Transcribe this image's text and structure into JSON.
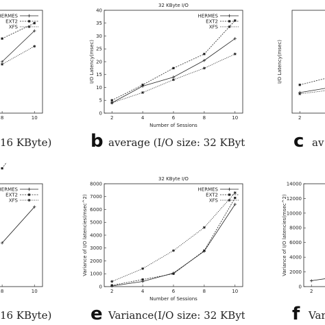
{
  "chart_data": [
    {
      "type": "line",
      "panel": "a",
      "title": "",
      "xlabel": "",
      "ylabel": "",
      "x": [
        2,
        4,
        6,
        8,
        10
      ],
      "xlim": [
        1.5,
        10.5
      ],
      "x_ticks": [
        "8",
        "10"
      ],
      "y_ticks": [],
      "legend": "top-right",
      "series": [
        {
          "name": "HERMES",
          "values": [
            null,
            null,
            null,
            20,
            32
          ]
        },
        {
          "name": "EXT2",
          "values": [
            null,
            null,
            null,
            29,
            35
          ]
        },
        {
          "name": "XFS",
          "values": [
            null,
            null,
            null,
            19,
            26
          ]
        }
      ],
      "caption_letter": "",
      "caption_text": "16 KByte)"
    },
    {
      "type": "line",
      "panel": "b",
      "title": "32 KByte I/O",
      "xlabel": "Number of Sessions",
      "ylabel": "I/O Latency(msec)",
      "x": [
        2,
        4,
        6,
        8,
        10
      ],
      "xlim": [
        1.5,
        10.5
      ],
      "ylim": [
        0,
        40
      ],
      "x_ticks": [
        "2",
        "4",
        "6",
        "8",
        "10"
      ],
      "y_ticks": [
        "0",
        "5",
        "10",
        "15",
        "20",
        "25",
        "30",
        "35",
        "40"
      ],
      "legend": "top-right",
      "series": [
        {
          "name": "HERMES",
          "values": [
            4,
            10.5,
            14,
            20.5,
            29
          ]
        },
        {
          "name": "EXT2",
          "values": [
            5,
            11,
            17.5,
            23,
            36
          ]
        },
        {
          "name": "XFS",
          "values": [
            4,
            8,
            13,
            17.5,
            23
          ]
        }
      ],
      "caption_letter": "b",
      "caption_text": "average (I/O size: 32 KByte)"
    },
    {
      "type": "line",
      "panel": "c",
      "title": "",
      "xlabel": "",
      "ylabel": "I/O Latency(msec)",
      "x": [
        2,
        4,
        6,
        8,
        10
      ],
      "xlim": [
        1.5,
        10.5
      ],
      "ylim": [
        0,
        40
      ],
      "x_ticks": [
        "2"
      ],
      "y_ticks": [],
      "legend": "",
      "series": [
        {
          "name": "HERMES",
          "values": [
            8,
            10,
            null,
            null,
            null
          ]
        },
        {
          "name": "EXT2",
          "values": [
            11,
            14,
            null,
            null,
            null
          ]
        },
        {
          "name": "XFS",
          "values": [
            7.5,
            9,
            null,
            null,
            null
          ]
        }
      ],
      "caption_letter": "c",
      "caption_text": "av"
    },
    {
      "type": "line",
      "panel": "d",
      "title": "",
      "xlabel": "",
      "ylabel": "",
      "x": [
        2,
        4,
        6,
        8,
        10
      ],
      "xlim": [
        1.5,
        10.5
      ],
      "x_ticks": [
        "8",
        "10"
      ],
      "y_ticks": [],
      "legend": "top-right",
      "series": [
        {
          "name": "HERMES",
          "values": [
            null,
            null,
            null,
            17,
            31
          ]
        },
        {
          "name": "EXT2",
          "values": [
            null,
            null,
            null,
            46,
            63
          ]
        },
        {
          "name": "XFS",
          "values": [
            null,
            null,
            null,
            50,
            60
          ]
        }
      ],
      "caption_letter": "",
      "caption_text": "16 KByte)"
    },
    {
      "type": "line",
      "panel": "e",
      "title": "32 KByte I/O",
      "xlabel": "Number of Sessions",
      "ylabel": "Variance of I/O latencies(msec^2)",
      "x": [
        2,
        4,
        6,
        8,
        10
      ],
      "xlim": [
        1.5,
        10.5
      ],
      "ylim": [
        0,
        8000
      ],
      "x_ticks": [
        "2",
        "4",
        "6",
        "8",
        "10"
      ],
      "y_ticks": [
        "0",
        "1000",
        "2000",
        "3000",
        "4000",
        "5000",
        "6000",
        "7000",
        "8000"
      ],
      "legend": "top-right",
      "series": [
        {
          "name": "HERMES",
          "values": [
            50,
            400,
            1050,
            2750,
            6400
          ]
        },
        {
          "name": "EXT2",
          "values": [
            100,
            550,
            1000,
            2800,
            6900
          ]
        },
        {
          "name": "XFS",
          "values": [
            400,
            1400,
            2800,
            4600,
            7300
          ]
        }
      ],
      "caption_letter": "e",
      "caption_text": "Variance(I/O size: 32 KByte)"
    },
    {
      "type": "line",
      "panel": "f",
      "title": "",
      "xlabel": "",
      "ylabel": "Variance of I/O latencies(msec^2)",
      "x": [
        2,
        4,
        6,
        8,
        10
      ],
      "xlim": [
        1.5,
        10.5
      ],
      "ylim": [
        0,
        14000
      ],
      "x_ticks": [
        "2"
      ],
      "y_ticks": [
        "0",
        "2000",
        "4000",
        "6000",
        "8000",
        "10000",
        "12000",
        "14000"
      ],
      "legend": "",
      "series": [
        {
          "name": "HERMES",
          "values": [
            800,
            1400,
            null,
            null,
            null
          ]
        },
        {
          "name": "EXT2",
          "values": [
            null,
            null,
            null,
            null,
            null
          ]
        },
        {
          "name": "XFS",
          "values": [
            null,
            null,
            null,
            null,
            null
          ]
        }
      ],
      "caption_letter": "f",
      "caption_text": "Varia"
    }
  ]
}
